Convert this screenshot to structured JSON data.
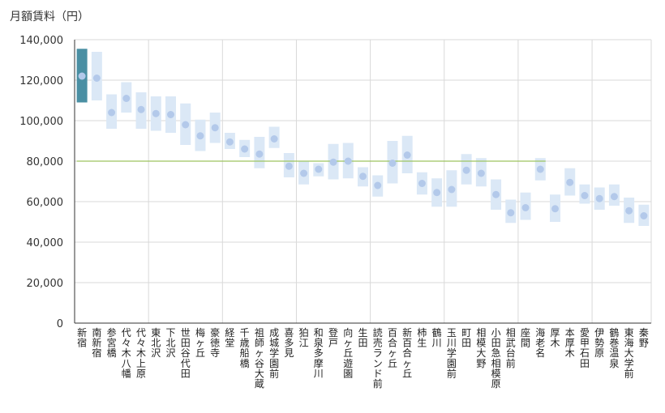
{
  "chart_data": {
    "type": "range-bar",
    "ylabel": "月額賃料（円）",
    "ylim": [
      0,
      140000
    ],
    "yticks": [
      "0",
      "20,000",
      "40,000",
      "60,000",
      "80,000",
      "100,000",
      "120,000",
      "140,000"
    ],
    "ytick_values": [
      0,
      20000,
      40000,
      60000,
      80000,
      100000,
      120000,
      140000
    ],
    "reference_line": 80000,
    "highlight_index": 0,
    "colors": {
      "range": "#dbe8f6",
      "highlight": "#4a8fa3",
      "point": "#b3c9ea",
      "reference": "#9dc45f",
      "grid": "#d9d9d9",
      "axis": "#333333"
    },
    "categories": [
      "新宿",
      "南新宿",
      "参宮橋",
      "代々木八幡",
      "代々木上原",
      "東北沢",
      "下北沢",
      "世田谷代田",
      "梅ヶ丘",
      "豪徳寺",
      "経堂",
      "千歳船橋",
      "祖師ヶ谷大蔵",
      "成城学園前",
      "喜多見",
      "狛江",
      "和泉多摩川",
      "登戸",
      "向ヶ丘遊園",
      "生田",
      "読売ランド前",
      "百合ヶ丘",
      "新百合ヶ丘",
      "柿生",
      "鶴川",
      "玉川学園前",
      "町田",
      "相模大野",
      "小田急相模原",
      "相武台前",
      "座間",
      "海老名",
      "厚木",
      "本厚木",
      "愛甲石田",
      "伊勢原",
      "鶴巻温泉",
      "東海大学前",
      "秦野"
    ],
    "low": [
      109000,
      110000,
      96000,
      104000,
      96000,
      95000,
      94000,
      88000,
      85000,
      89000,
      86000,
      82000,
      76500,
      86500,
      72000,
      68500,
      72500,
      71000,
      71500,
      67500,
      62500,
      69000,
      74000,
      63500,
      57500,
      57500,
      68500,
      67500,
      56000,
      49500,
      51000,
      70500,
      50000,
      63000,
      59000,
      56000,
      58000,
      49500,
      48000
    ],
    "high": [
      135500,
      134000,
      113000,
      119000,
      114000,
      112000,
      112000,
      108500,
      100500,
      104000,
      94000,
      90500,
      92000,
      97000,
      84000,
      80000,
      79000,
      88500,
      89000,
      77000,
      73000,
      90000,
      92500,
      74500,
      71500,
      75500,
      83500,
      81500,
      71000,
      61000,
      64500,
      81500,
      63500,
      76500,
      68500,
      67000,
      68500,
      62000,
      58500
    ],
    "value": [
      122000,
      121000,
      104000,
      111000,
      105500,
      103500,
      103000,
      98000,
      92500,
      96500,
      89500,
      86000,
      83500,
      91000,
      77500,
      74000,
      76000,
      79500,
      80000,
      72500,
      68000,
      79000,
      83000,
      69000,
      64500,
      66000,
      75500,
      74000,
      63500,
      54500,
      57000,
      76000,
      56500,
      69500,
      63000,
      61500,
      62500,
      55500,
      53000
    ]
  }
}
